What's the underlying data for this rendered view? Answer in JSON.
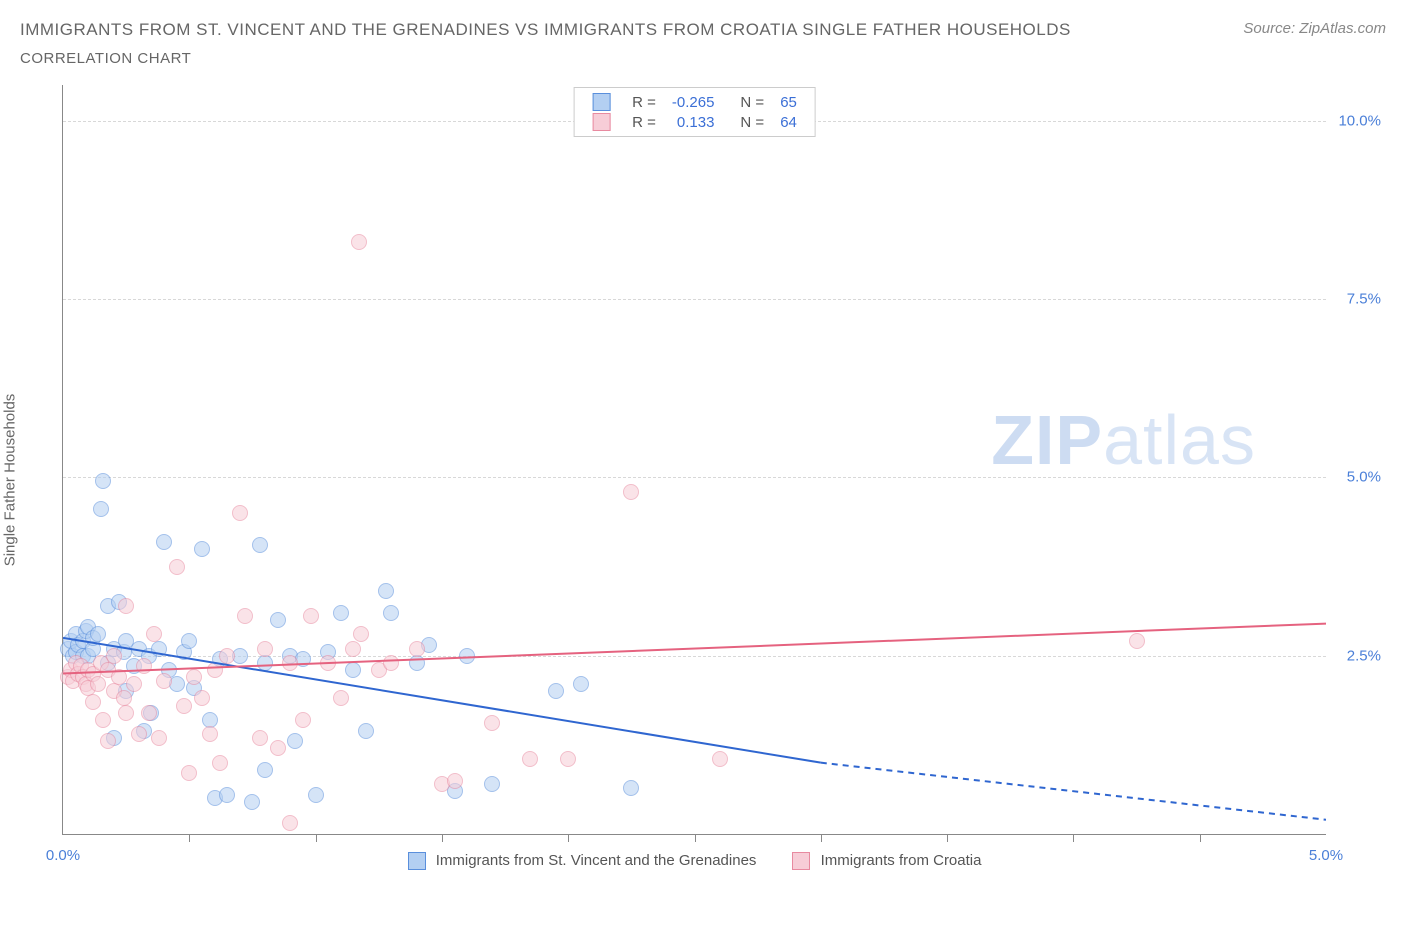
{
  "title": "IMMIGRANTS FROM ST. VINCENT AND THE GRENADINES VS IMMIGRANTS FROM CROATIA SINGLE FATHER HOUSEHOLDS",
  "subtitle": "CORRELATION CHART",
  "source_prefix": "Source: ",
  "source": "ZipAtlas.com",
  "ylabel": "Single Father Households",
  "watermark_bold": "ZIP",
  "watermark_light": "atlas",
  "chart": {
    "type": "scatter",
    "background_color": "#ffffff",
    "grid_color": "#d8d8d8",
    "axis_color": "#888888",
    "xlim": [
      0,
      5.0
    ],
    "ylim": [
      0,
      10.5
    ],
    "xlabel_min": "0.0%",
    "xlabel_max": "5.0%",
    "xtick_positions": [
      0.5,
      1.0,
      1.5,
      2.0,
      2.5,
      3.0,
      3.5,
      4.0,
      4.5
    ],
    "yticks": [
      {
        "v": 2.5,
        "label": "2.5%"
      },
      {
        "v": 5.0,
        "label": "5.0%"
      },
      {
        "v": 7.5,
        "label": "7.5%"
      },
      {
        "v": 10.0,
        "label": "10.0%"
      }
    ],
    "marker_radius": 8,
    "marker_opacity": 0.55,
    "marker_border_width": 1.2,
    "line_width": 2
  },
  "series": [
    {
      "key": "svg_grenadines",
      "label": "Immigrants from St. Vincent and the Grenadines",
      "fill": "#b3cff2",
      "stroke": "#5a8fdc",
      "line_color": "#2f66d0",
      "R": "-0.265",
      "N": "65",
      "trend": {
        "x1": 0,
        "y1": 2.75,
        "x2_solid": 3.0,
        "y2_solid": 1.0,
        "x2": 5.0,
        "y2": 0.2
      },
      "points": [
        [
          0.02,
          2.6
        ],
        [
          0.03,
          2.7
        ],
        [
          0.04,
          2.5
        ],
        [
          0.05,
          2.8
        ],
        [
          0.05,
          2.55
        ],
        [
          0.06,
          2.65
        ],
        [
          0.08,
          2.7
        ],
        [
          0.08,
          2.5
        ],
        [
          0.09,
          2.85
        ],
        [
          0.1,
          2.5
        ],
        [
          0.1,
          2.9
        ],
        [
          0.12,
          2.6
        ],
        [
          0.12,
          2.75
        ],
        [
          0.14,
          2.8
        ],
        [
          0.15,
          4.55
        ],
        [
          0.16,
          4.95
        ],
        [
          0.18,
          3.2
        ],
        [
          0.18,
          2.4
        ],
        [
          0.2,
          2.6
        ],
        [
          0.2,
          1.35
        ],
        [
          0.22,
          3.25
        ],
        [
          0.24,
          2.55
        ],
        [
          0.25,
          2.0
        ],
        [
          0.25,
          2.7
        ],
        [
          0.28,
          2.35
        ],
        [
          0.3,
          2.6
        ],
        [
          0.32,
          1.45
        ],
        [
          0.34,
          2.5
        ],
        [
          0.35,
          1.7
        ],
        [
          0.38,
          2.6
        ],
        [
          0.4,
          4.1
        ],
        [
          0.42,
          2.3
        ],
        [
          0.45,
          2.1
        ],
        [
          0.48,
          2.55
        ],
        [
          0.5,
          2.7
        ],
        [
          0.52,
          2.05
        ],
        [
          0.55,
          4.0
        ],
        [
          0.58,
          1.6
        ],
        [
          0.6,
          0.5
        ],
        [
          0.62,
          2.45
        ],
        [
          0.65,
          0.55
        ],
        [
          0.7,
          2.5
        ],
        [
          0.75,
          0.45
        ],
        [
          0.78,
          4.05
        ],
        [
          0.8,
          0.9
        ],
        [
          0.8,
          2.4
        ],
        [
          0.85,
          3.0
        ],
        [
          0.9,
          2.5
        ],
        [
          0.92,
          1.3
        ],
        [
          0.95,
          2.45
        ],
        [
          1.0,
          0.55
        ],
        [
          1.05,
          2.55
        ],
        [
          1.1,
          3.1
        ],
        [
          1.15,
          2.3
        ],
        [
          1.2,
          1.45
        ],
        [
          1.28,
          3.4
        ],
        [
          1.3,
          3.1
        ],
        [
          1.4,
          2.4
        ],
        [
          1.45,
          2.65
        ],
        [
          1.55,
          0.6
        ],
        [
          1.6,
          2.5
        ],
        [
          1.7,
          0.7
        ],
        [
          1.95,
          2.0
        ],
        [
          2.05,
          2.1
        ],
        [
          2.25,
          0.65
        ]
      ]
    },
    {
      "key": "croatia",
      "label": "Immigrants from Croatia",
      "fill": "#f7cdd7",
      "stroke": "#e88aa0",
      "line_color": "#e5627f",
      "R": "0.133",
      "N": "64",
      "trend": {
        "x1": 0,
        "y1": 2.25,
        "x2_solid": 5.0,
        "y2_solid": 2.95,
        "x2": 5.0,
        "y2": 2.95
      },
      "points": [
        [
          0.02,
          2.2
        ],
        [
          0.03,
          2.3
        ],
        [
          0.04,
          2.15
        ],
        [
          0.05,
          2.4
        ],
        [
          0.06,
          2.25
        ],
        [
          0.07,
          2.35
        ],
        [
          0.08,
          2.2
        ],
        [
          0.09,
          2.1
        ],
        [
          0.1,
          2.3
        ],
        [
          0.1,
          2.05
        ],
        [
          0.12,
          2.25
        ],
        [
          0.12,
          1.85
        ],
        [
          0.14,
          2.1
        ],
        [
          0.15,
          2.4
        ],
        [
          0.16,
          1.6
        ],
        [
          0.18,
          2.3
        ],
        [
          0.18,
          1.3
        ],
        [
          0.2,
          2.5
        ],
        [
          0.2,
          2.0
        ],
        [
          0.22,
          2.2
        ],
        [
          0.24,
          1.9
        ],
        [
          0.25,
          3.2
        ],
        [
          0.25,
          1.7
        ],
        [
          0.28,
          2.1
        ],
        [
          0.3,
          1.4
        ],
        [
          0.32,
          2.35
        ],
        [
          0.34,
          1.7
        ],
        [
          0.36,
          2.8
        ],
        [
          0.38,
          1.35
        ],
        [
          0.4,
          2.15
        ],
        [
          0.45,
          3.75
        ],
        [
          0.48,
          1.8
        ],
        [
          0.5,
          0.85
        ],
        [
          0.52,
          2.2
        ],
        [
          0.55,
          1.9
        ],
        [
          0.58,
          1.4
        ],
        [
          0.6,
          2.3
        ],
        [
          0.62,
          1.0
        ],
        [
          0.65,
          2.5
        ],
        [
          0.7,
          4.5
        ],
        [
          0.72,
          3.05
        ],
        [
          0.78,
          1.35
        ],
        [
          0.8,
          2.6
        ],
        [
          0.85,
          1.2
        ],
        [
          0.9,
          0.15
        ],
        [
          0.9,
          2.4
        ],
        [
          0.95,
          1.6
        ],
        [
          0.98,
          3.05
        ],
        [
          1.05,
          2.4
        ],
        [
          1.1,
          1.9
        ],
        [
          1.15,
          2.6
        ],
        [
          1.18,
          2.8
        ],
        [
          1.17,
          8.3
        ],
        [
          1.25,
          2.3
        ],
        [
          1.3,
          2.4
        ],
        [
          1.4,
          2.6
        ],
        [
          1.5,
          0.7
        ],
        [
          1.55,
          0.75
        ],
        [
          1.7,
          1.55
        ],
        [
          1.85,
          1.05
        ],
        [
          2.0,
          1.05
        ],
        [
          2.25,
          4.8
        ],
        [
          2.6,
          1.05
        ],
        [
          4.25,
          2.7
        ]
      ]
    }
  ],
  "legend_top_headers": {
    "R": "R =",
    "N": "N ="
  }
}
